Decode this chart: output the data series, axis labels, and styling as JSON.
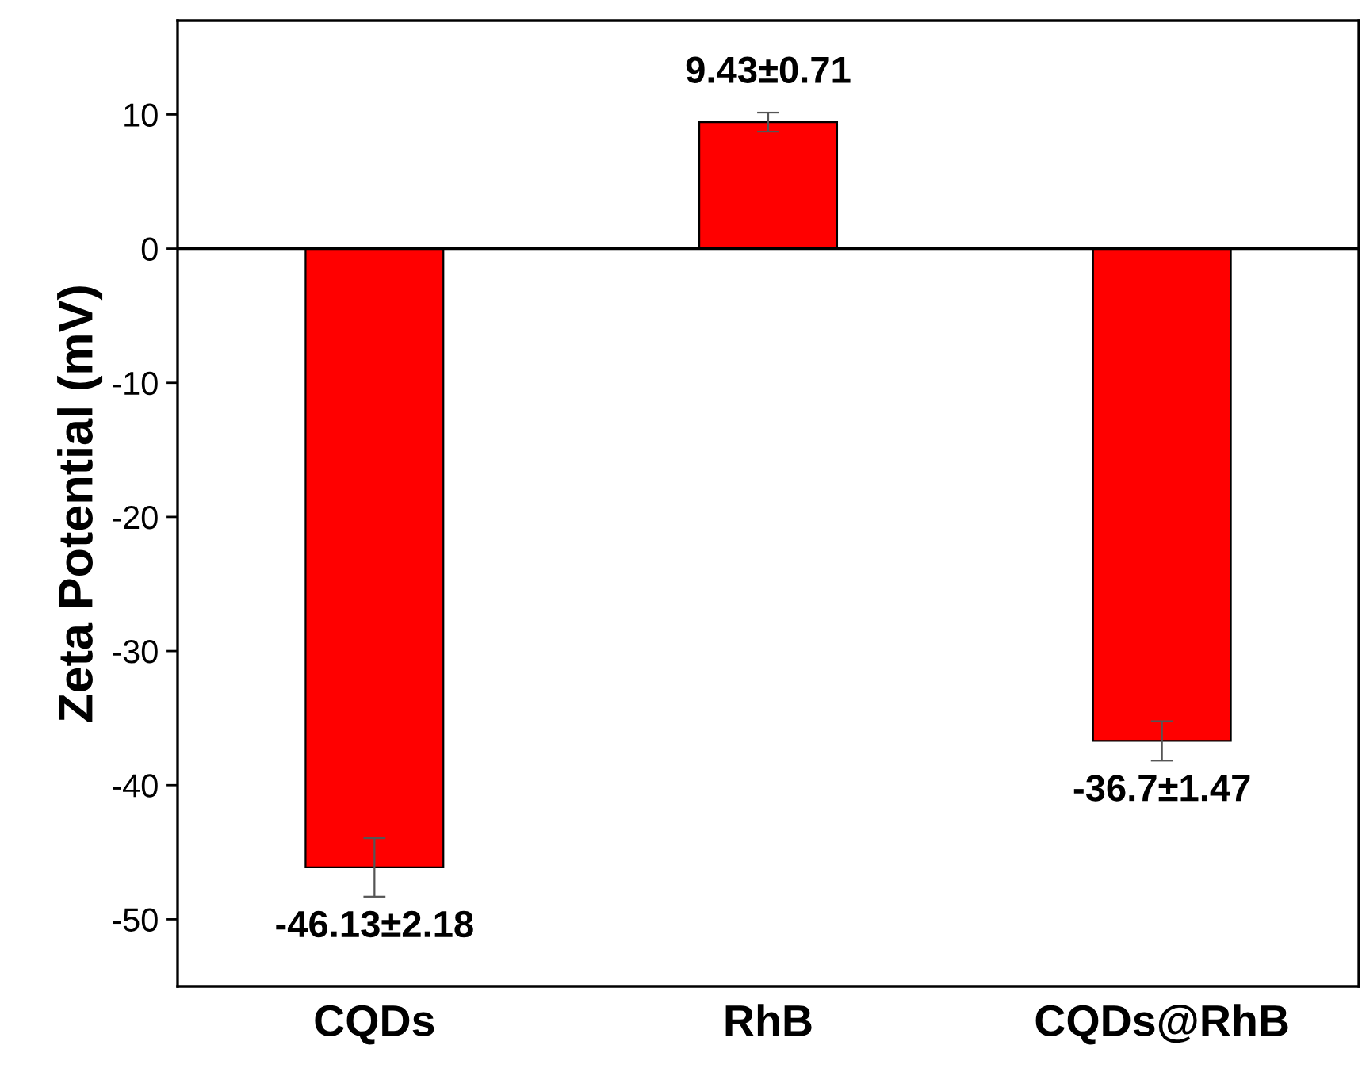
{
  "chart_data": {
    "type": "bar",
    "ylabel": "Zeta Potential (mV)",
    "categories": [
      "CQDs",
      "RhB",
      "CQDs@RhB"
    ],
    "values": [
      -46.13,
      9.43,
      -36.7
    ],
    "errors": [
      2.18,
      0.71,
      1.47
    ],
    "value_labels": [
      "-46.13±2.18",
      "9.43±0.71",
      "-36.7±1.47"
    ],
    "color": "#ff0000",
    "ylim": [
      -55,
      17
    ],
    "yticks": [
      -50,
      -40,
      -30,
      -20,
      -10,
      0,
      10
    ],
    "ref_lines": [
      {
        "axis": "y",
        "value": 0,
        "color": "#000000"
      }
    ],
    "grid": false,
    "legend": false
  }
}
